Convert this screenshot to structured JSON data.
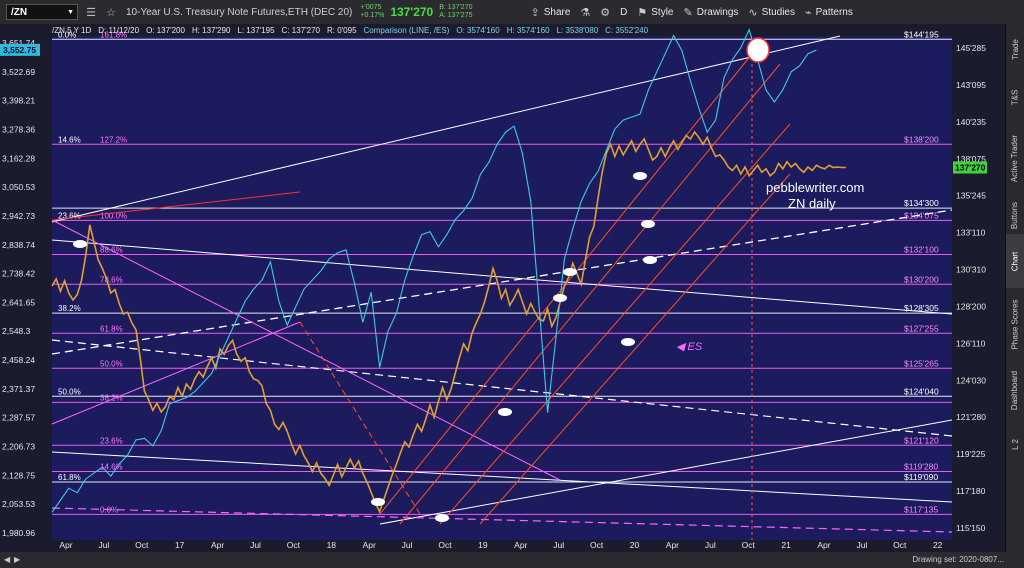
{
  "toolbar": {
    "symbol": "/ZN",
    "description": "10-Year U.S. Treasury Note Futures,ETH (DEC 20)",
    "change": "+'0075",
    "change_pct": "+0.17%",
    "last": "137'270",
    "bid": "B: 137'270",
    "ask": "A: 137'275",
    "share_label": "Share",
    "interval_label": "D",
    "style_label": "Style",
    "drawings_label": "Drawings",
    "studies_label": "Studies",
    "patterns_label": "Patterns"
  },
  "infobar": {
    "title": "/ZN 5 Y 1D",
    "date": "D: 11/12/20",
    "open": "O: 137'200",
    "high": "H: 137'290",
    "low": "L: 137'195",
    "close": "C: 137'270",
    "range": "R: 0'095",
    "comparison": "Comparison (LINE, /ES)",
    "cmp_open": "O: 3574'160",
    "cmp_high": "H: 3574'160",
    "cmp_low": "L: 3538'080",
    "cmp_close": "C: 3552'240"
  },
  "sidebar": [
    "Trade",
    "T&S",
    "Active Trader",
    "Buttons",
    "Chart",
    "Phase Scores",
    "Dashboard",
    "L 2"
  ],
  "bottombar": {
    "drawing_set": "Drawing set: 2020-0807..."
  },
  "chart_data": {
    "type": "line",
    "watermark": [
      "pebblewriter.com",
      "ZN daily"
    ],
    "es_label": "ES",
    "x_ticks": [
      "Apr",
      "Jul",
      "Oct",
      "17",
      "Apr",
      "Jul",
      "Oct",
      "18",
      "Apr",
      "Jul",
      "Oct",
      "19",
      "Apr",
      "Jul",
      "Oct",
      "20",
      "Apr",
      "Jul",
      "Oct",
      "21",
      "Apr",
      "Jul",
      "Oct",
      "22"
    ],
    "left_axis": {
      "ticks": [
        "3,651.74",
        "3,522.69",
        "3,398.21",
        "3,278.36",
        "3,162.28",
        "3,050.53",
        "2,942.73",
        "2,838.74",
        "2,738.42",
        "2,641.65",
        "2,548.3",
        "2,458.24",
        "2,371.37",
        "2,287.57",
        "2,206.73",
        "2,128.75",
        "2,053.53",
        "1,980.96"
      ],
      "highlight": "3,552.75",
      "range": [
        1950,
        3680
      ]
    },
    "right_axis": {
      "ticks": [
        "145'285",
        "143'095",
        "140'235",
        "138'075",
        "135'245",
        "133'110",
        "130'310",
        "128'200",
        "126'110",
        "124'030",
        "121'280",
        "119'225",
        "117'180",
        "115'150"
      ],
      "last_price": "137'270"
    },
    "fib_levels": [
      {
        "left": "0.0%",
        "pct": "161.8%",
        "price": "$144'195",
        "value": 144.6,
        "color": "#ffffff"
      },
      {
        "left": "14.6%",
        "pct": "127.2%",
        "price": "$138'200",
        "value": 138.6,
        "color": "#ff66ff"
      },
      {
        "left": "23.6%",
        "pct": "100.0%",
        "price": "$134'075",
        "value": 134.25,
        "color": "#ff66ff"
      },
      {
        "left": "",
        "pct": "88.6%",
        "price": "$132'100",
        "value": 132.3,
        "color": "#ff66ff"
      },
      {
        "left": "",
        "pct": "78.6%",
        "price": "$130'200",
        "value": 130.6,
        "color": "#ff66ff"
      },
      {
        "left": "38.2%",
        "pct": "",
        "price": "$128'305",
        "value": 128.95,
        "color": "#ffffff"
      },
      {
        "left": "",
        "pct": "61.8%",
        "price": "$127'255",
        "value": 127.8,
        "color": "#ff66ff"
      },
      {
        "left": "",
        "pct": "50.0%",
        "price": "$125'265",
        "value": 125.8,
        "color": "#ff66ff"
      },
      {
        "left": "50.0%",
        "pct": "",
        "price": "$124'040",
        "value": 124.2,
        "color": "#ffffff"
      },
      {
        "left": "",
        "pct": "38.2%",
        "price": "",
        "value": 123.85,
        "color": "#ff66ff"
      },
      {
        "left": "",
        "pct": "23.6%",
        "price": "$121'120",
        "value": 121.4,
        "color": "#ff66ff"
      },
      {
        "left": "",
        "pct": "14.6%",
        "price": "$119'280",
        "value": 119.9,
        "color": "#ff66ff"
      },
      {
        "left": "61.8%",
        "pct": "",
        "price": "$119'090",
        "value": 119.3,
        "color": "#ffffff"
      },
      {
        "left": "",
        "pct": "0.0%",
        "price": "$117'135",
        "value": 117.45,
        "color": "#ff66ff"
      },
      {
        "left": "",
        "pct": "",
        "price": "$134'300",
        "value": 134.95,
        "color": "#ffffff"
      }
    ],
    "series": [
      {
        "name": "/ZN",
        "color": "#e0a030",
        "x": [
          0,
          4,
          8,
          12,
          16,
          20,
          24,
          28,
          32,
          36,
          40,
          44,
          48,
          52,
          56,
          60,
          64,
          68,
          72,
          76,
          80,
          84,
          88,
          92,
          96,
          100,
          104,
          108,
          112,
          116,
          120,
          124,
          128,
          132,
          136,
          140,
          144,
          148,
          152,
          156,
          160,
          164,
          168,
          172,
          176,
          180,
          184,
          188,
          192,
          196,
          200,
          204,
          208,
          212,
          216,
          220,
          224,
          228,
          232,
          236,
          240,
          244,
          248,
          252,
          256,
          260,
          264,
          268,
          272,
          276,
          280,
          284,
          288,
          292,
          296,
          300,
          304,
          308,
          312,
          316,
          320,
          324,
          328,
          332,
          336,
          340,
          344,
          348,
          352,
          356,
          360,
          364,
          368,
          372,
          376,
          380,
          384,
          388,
          392,
          396,
          400,
          404,
          408,
          412,
          416,
          420,
          424,
          428,
          432,
          436,
          440,
          444,
          448,
          452,
          456,
          460,
          464,
          468,
          472,
          476,
          480,
          484,
          488,
          492,
          496,
          500,
          504,
          508,
          512,
          516,
          520,
          524,
          528,
          532,
          536,
          540,
          544,
          548,
          552,
          556,
          560,
          564,
          568,
          572,
          576,
          580,
          584,
          588,
          592,
          596,
          600,
          604,
          608,
          612,
          616,
          620,
          624,
          628,
          632,
          636,
          640,
          644,
          648,
          652,
          656,
          660,
          664,
          668,
          672,
          676,
          680,
          684,
          688,
          692,
          696,
          700,
          704,
          708,
          712,
          716,
          720,
          724,
          728,
          732,
          736,
          740,
          744,
          748,
          752,
          756
        ],
        "values": [
          130.5,
          130.9,
          130.2,
          130.8,
          130.1,
          129.7,
          130.0,
          130.8,
          132.2,
          134.0,
          133.0,
          132.0,
          131.5,
          130.9,
          130.1,
          130.3,
          129.5,
          128.9,
          129.0,
          128.4,
          128.0,
          126.4,
          124.5,
          124.0,
          123.4,
          123.8,
          123.3,
          123.6,
          124.2,
          124.0,
          124.7,
          124.2,
          124.9,
          124.6,
          125.2,
          125.6,
          125.3,
          125.9,
          126.4,
          125.8,
          126.9,
          126.6,
          127.1,
          127.4,
          126.6,
          126.2,
          126.4,
          125.6,
          125.2,
          125.1,
          124.8,
          123.8,
          123.4,
          122.6,
          122.3,
          122.7,
          122.2,
          121.5,
          120.9,
          121.4,
          120.8,
          120.4,
          119.9,
          120.4,
          119.8,
          119.5,
          119.1,
          119.7,
          120.3,
          119.6,
          120.1,
          120.6,
          120.1,
          120.5,
          119.8,
          119.3,
          118.7,
          118.1,
          117.6,
          118.3,
          119.0,
          119.7,
          120.3,
          121.0,
          121.6,
          121.3,
          122.0,
          122.6,
          122.2,
          122.9,
          123.7,
          123.0,
          123.9,
          124.7,
          124.0,
          124.6,
          125.5,
          126.4,
          127.2,
          126.8,
          127.8,
          128.4,
          128.9,
          129.6,
          130.5,
          131.5,
          130.8,
          129.8,
          130.3,
          129.4,
          129.8,
          130.3,
          129.6,
          128.9,
          129.5,
          129.0,
          128.6,
          128.5,
          129.2,
          128.2,
          128.7,
          129.6,
          130.5,
          131.0,
          131.8,
          131.2,
          130.6,
          132.0,
          133.3,
          133.9,
          135.5,
          137.0,
          138.1,
          138.6,
          137.9,
          138.5,
          138.0,
          138.4,
          138.8,
          138.2,
          138.6,
          138.9,
          138.3,
          137.7,
          137.9,
          138.4,
          137.9,
          138.4,
          138.8,
          138.3,
          138.7,
          139.1,
          138.9,
          139.3,
          139.0,
          138.6,
          139.0,
          138.4,
          137.9,
          138.0,
          137.7,
          137.3,
          137.1,
          137.4,
          136.9,
          137.3,
          136.8,
          137.1,
          137.4,
          137.0,
          137.2,
          136.8,
          137.0,
          137.5,
          137.2,
          137.6,
          137.3,
          137.5,
          137.2,
          137.0,
          137.3,
          137.1,
          137.4,
          137.27,
          137.2,
          137.4,
          137.27,
          137.3,
          137.27,
          137.27
        ]
      },
      {
        "name": "/ES",
        "color": "#3fc8e8",
        "x": [
          0,
          8,
          16,
          24,
          32,
          40,
          48,
          56,
          64,
          72,
          80,
          88,
          96,
          104,
          112,
          120,
          128,
          136,
          144,
          152,
          160,
          168,
          176,
          184,
          192,
          200,
          208,
          216,
          224,
          232,
          240,
          248,
          256,
          264,
          272,
          280,
          288,
          296,
          304,
          312,
          320,
          328,
          336,
          344,
          352,
          360,
          368,
          376,
          384,
          392,
          400,
          408,
          416,
          424,
          432,
          440,
          448,
          456,
          464,
          472,
          480,
          488,
          496,
          504,
          512,
          520,
          528,
          536,
          544,
          552,
          560,
          564,
          568,
          576,
          584,
          592,
          600,
          608,
          616,
          624,
          632,
          640,
          648,
          656,
          664,
          672,
          680,
          688,
          696,
          704,
          712,
          720,
          728
        ],
        "values": [
          2020,
          2060,
          2100,
          2085,
          2130,
          2150,
          2170,
          2140,
          2180,
          2210,
          2260,
          2265,
          2240,
          2290,
          2380,
          2390,
          2400,
          2420,
          2450,
          2480,
          2540,
          2600,
          2660,
          2720,
          2760,
          2790,
          2850,
          2720,
          2640,
          2700,
          2760,
          2790,
          2820,
          2860,
          2880,
          2890,
          2780,
          2650,
          2750,
          2500,
          2620,
          2680,
          2790,
          2870,
          2940,
          2950,
          2900,
          2940,
          2990,
          3020,
          3060,
          3140,
          3180,
          3240,
          3280,
          3300,
          3210,
          3050,
          2700,
          2350,
          2600,
          2860,
          2960,
          3050,
          3110,
          3150,
          3220,
          3290,
          3320,
          3330,
          3340,
          3380,
          3420,
          3480,
          3540,
          3600,
          3550,
          3450,
          3360,
          3280,
          3320,
          3460,
          3520,
          3560,
          3620,
          3520,
          3420,
          3380,
          3420,
          3480,
          3500,
          3540,
          3552
        ]
      }
    ]
  }
}
